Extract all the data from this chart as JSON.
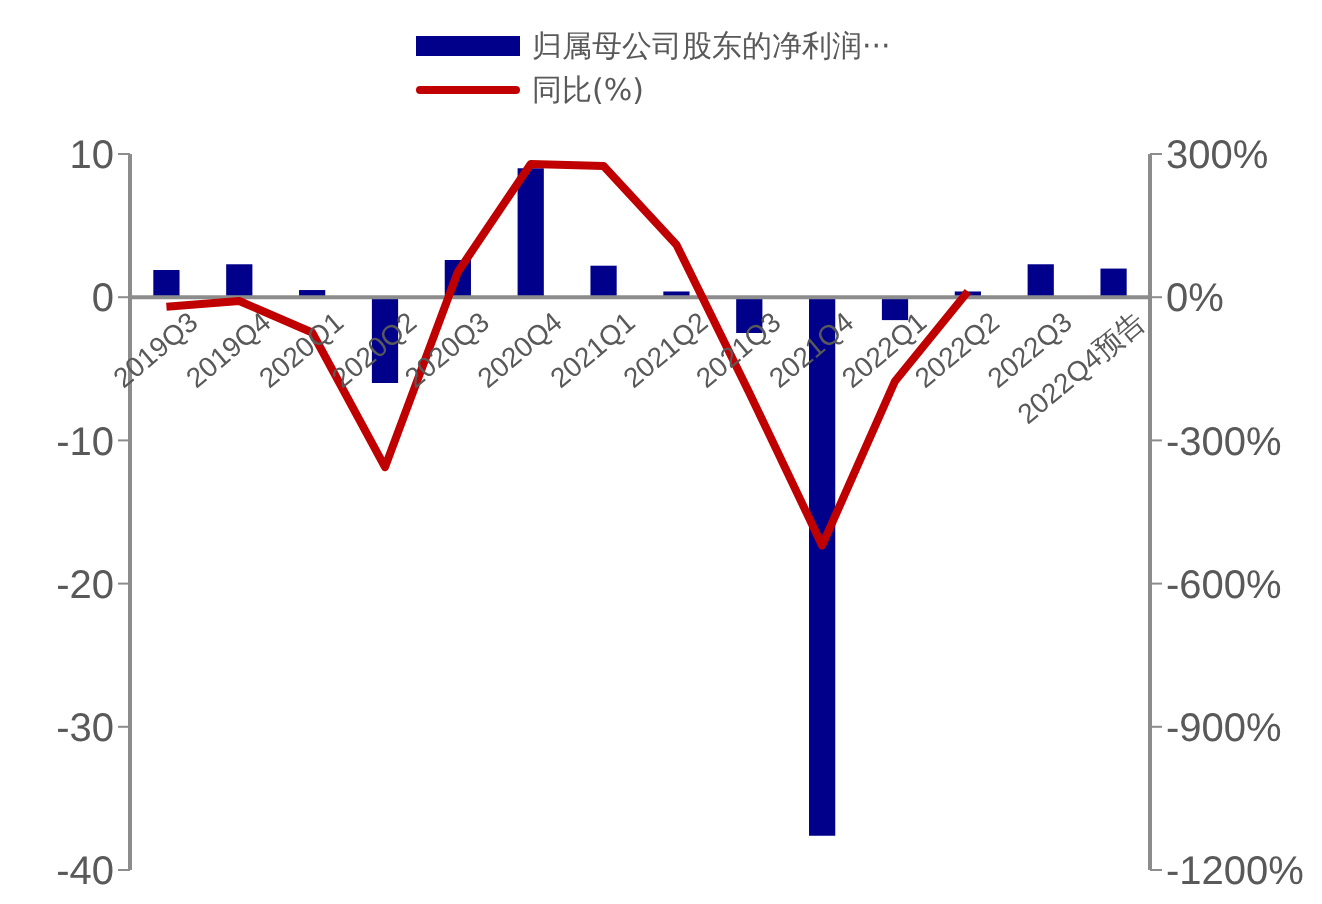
{
  "chart_data": {
    "type": "bar",
    "categories": [
      "2019Q3",
      "2019Q4",
      "2020Q1",
      "2020Q2",
      "2020Q3",
      "2020Q4",
      "2021Q1",
      "2021Q2",
      "2021Q3",
      "2021Q4",
      "2022Q1",
      "2022Q2",
      "2022Q3",
      "2022Q4预告"
    ],
    "series": [
      {
        "name": "归属母公司股东的净利润···",
        "color": "#00008b",
        "values": [
          1.9,
          2.3,
          0.5,
          -6.0,
          2.6,
          9.0,
          2.2,
          0.4,
          -2.5,
          -37.6,
          -1.6,
          0.4,
          2.3,
          2.0
        ]
      },
      {
        "name": "同比(%)",
        "type": "line",
        "axis": "y2",
        "color": "#c00000",
        "values": [
          -20,
          -8,
          -74,
          -356,
          53,
          279,
          275,
          110,
          -200,
          -520,
          -176,
          12,
          null,
          null
        ]
      }
    ],
    "ylim": [
      -40,
      10
    ],
    "yticks": [
      -40,
      -30,
      -20,
      -10,
      0,
      10
    ],
    "y2lim": [
      -1200,
      300
    ],
    "y2ticks": [
      {
        "value": -1200,
        "label": "-1200%"
      },
      {
        "value": -900,
        "label": "-900%"
      },
      {
        "value": -600,
        "label": "-600%"
      },
      {
        "value": -300,
        "label": "-300%"
      },
      {
        "value": 0,
        "label": "0%"
      },
      {
        "value": 300,
        "label": "300%"
      }
    ],
    "grid": false,
    "legend": "top",
    "marker": "none",
    "line_style": "solid"
  }
}
